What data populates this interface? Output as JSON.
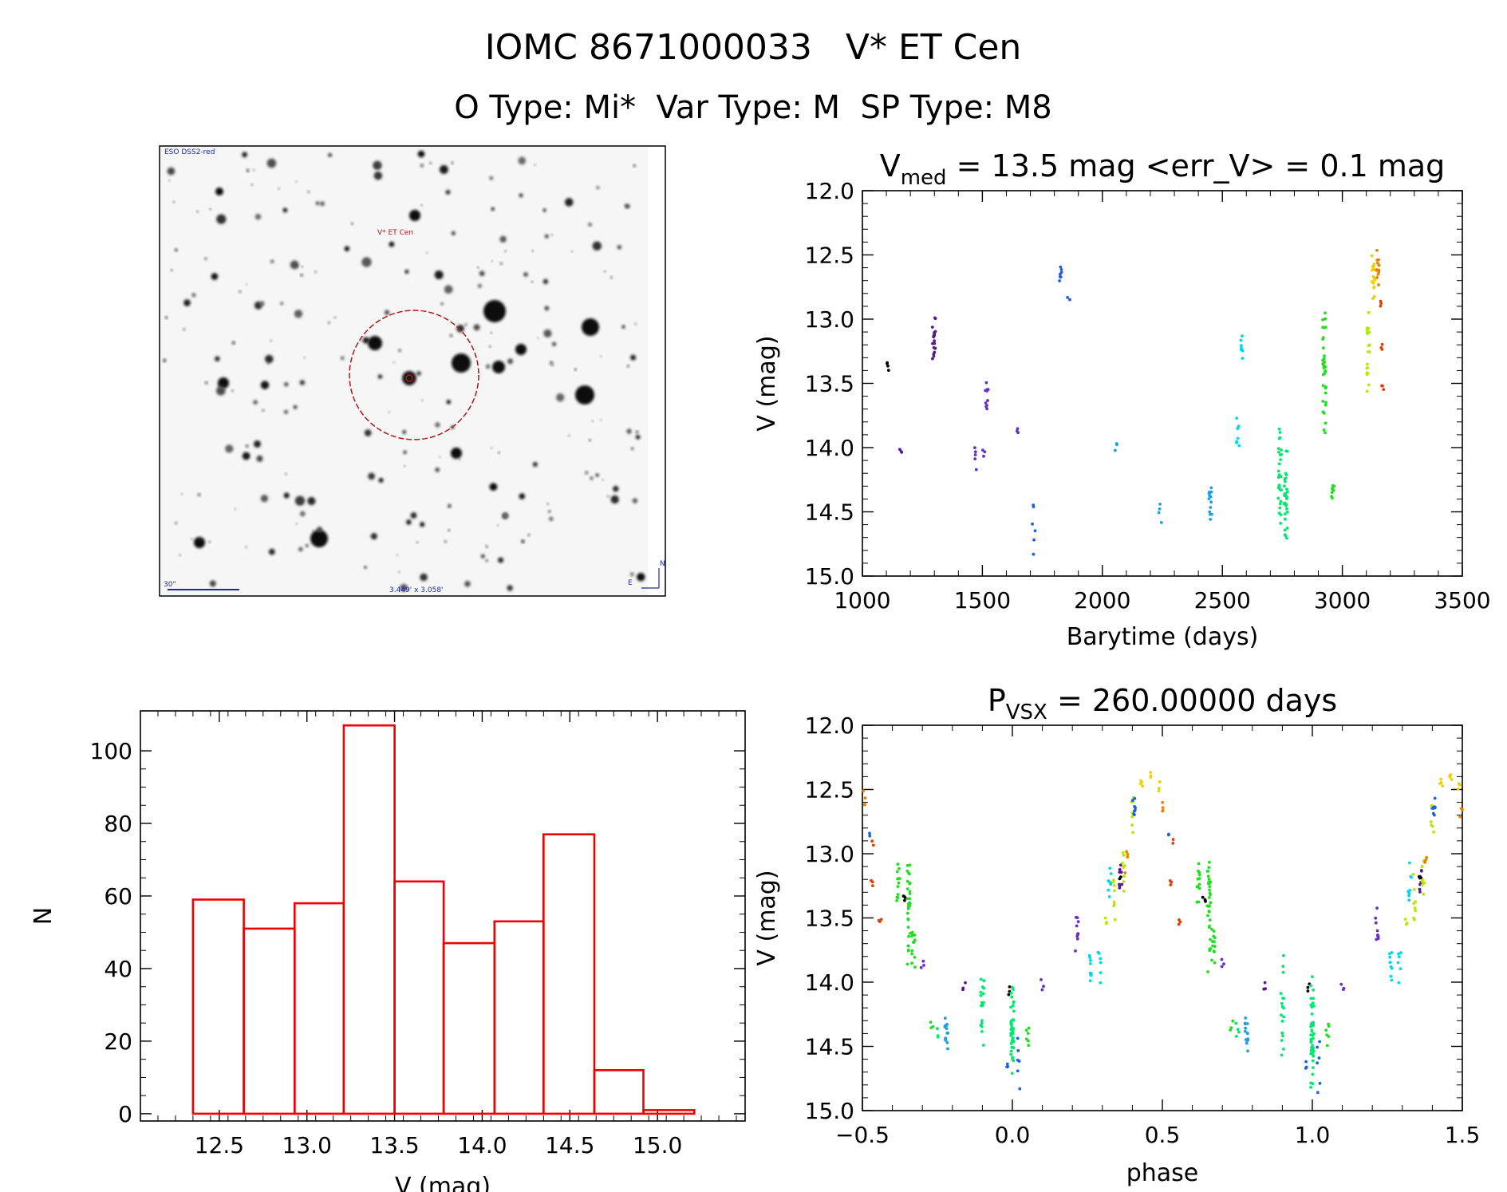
{
  "title": "IOMC 8671000033   V* ET Cen",
  "subtitle": "O Type: Mi*  Var Type: M  SP Type: M8",
  "colors": {
    "hist": "#ee0000",
    "palette": [
      "#000000",
      "#551a8b",
      "#6a2ec8",
      "#1f5fe0",
      "#1aa0e8",
      "#00d8e8",
      "#00e870",
      "#20e020",
      "#b8e800",
      "#f0d000",
      "#f08000",
      "#e04000"
    ]
  },
  "sky_image": {
    "survey": "ESO DSS2-red",
    "target_label": "V* ET Cen",
    "scale_label": "30\"",
    "fov_label": "3.449' x 3.058'",
    "north": "N",
    "east": "E"
  },
  "chart_data": [
    {
      "id": "lightcurve",
      "type": "scatter",
      "title_prefix": "V",
      "title_subscript": "med",
      "title_rest": " = 13.5 mag <err_V> = 0.1 mag",
      "xlabel": "Barytime (days)",
      "ylabel": "V (mag)",
      "xlim": [
        1000,
        3500
      ],
      "ylim": [
        15.0,
        12.0
      ],
      "xticks": [
        1000,
        1500,
        2000,
        2500,
        3000,
        3500
      ],
      "yticks": [
        12.0,
        12.5,
        13.0,
        13.5,
        14.0,
        14.5,
        15.0
      ],
      "groups": [
        {
          "color": 0,
          "x": 1105,
          "ymin": 13.3,
          "ymax": 13.4,
          "n": 4
        },
        {
          "color": 1,
          "x": 1160,
          "ymin": 14.0,
          "ymax": 14.07,
          "n": 3
        },
        {
          "color": 1,
          "x": 1298,
          "ymin": 12.95,
          "ymax": 13.38,
          "n": 18
        },
        {
          "color": 2,
          "x": 1470,
          "ymin": 13.98,
          "ymax": 14.18,
          "n": 5
        },
        {
          "color": 2,
          "x": 1505,
          "ymin": 14.0,
          "ymax": 14.08,
          "n": 3
        },
        {
          "color": 2,
          "x": 1518,
          "ymin": 13.38,
          "ymax": 13.82,
          "n": 10
        },
        {
          "color": 2,
          "x": 1645,
          "ymin": 13.82,
          "ymax": 13.9,
          "n": 3
        },
        {
          "color": 3,
          "x": 1715,
          "ymin": 14.38,
          "ymax": 14.9,
          "n": 6
        },
        {
          "color": 3,
          "x": 1825,
          "ymin": 12.56,
          "ymax": 12.73,
          "n": 8
        },
        {
          "color": 3,
          "x": 1860,
          "ymin": 12.83,
          "ymax": 12.86,
          "n": 2
        },
        {
          "color": 4,
          "x": 2055,
          "ymin": 13.95,
          "ymax": 14.05,
          "n": 3
        },
        {
          "color": 4,
          "x": 2240,
          "ymin": 14.44,
          "ymax": 14.62,
          "n": 4
        },
        {
          "color": 4,
          "x": 2450,
          "ymin": 14.22,
          "ymax": 14.58,
          "n": 14
        },
        {
          "color": 5,
          "x": 2565,
          "ymin": 13.72,
          "ymax": 14.06,
          "n": 9
        },
        {
          "color": 5,
          "x": 2580,
          "ymin": 13.06,
          "ymax": 13.38,
          "n": 8
        },
        {
          "color": 6,
          "x": 2740,
          "ymin": 13.72,
          "ymax": 14.72,
          "n": 30
        },
        {
          "color": 6,
          "x": 2765,
          "ymin": 13.95,
          "ymax": 14.82,
          "n": 30
        },
        {
          "color": 7,
          "x": 2925,
          "ymin": 12.92,
          "ymax": 13.9,
          "n": 35
        },
        {
          "color": 7,
          "x": 2960,
          "ymin": 14.25,
          "ymax": 14.42,
          "n": 8
        },
        {
          "color": 8,
          "x": 3108,
          "ymin": 12.9,
          "ymax": 13.58,
          "n": 20
        },
        {
          "color": 9,
          "x": 3130,
          "ymin": 12.36,
          "ymax": 12.9,
          "n": 18
        },
        {
          "color": 10,
          "x": 3148,
          "ymin": 12.38,
          "ymax": 12.78,
          "n": 12
        },
        {
          "color": 11,
          "x": 3162,
          "ymin": 12.86,
          "ymax": 12.92,
          "n": 3
        },
        {
          "color": 11,
          "x": 3162,
          "ymin": 13.15,
          "ymax": 13.28,
          "n": 3
        },
        {
          "color": 11,
          "x": 3170,
          "ymin": 13.48,
          "ymax": 13.56,
          "n": 3
        }
      ]
    },
    {
      "id": "histogram",
      "type": "bar",
      "xlabel": "V (mag)",
      "ylabel": "N",
      "xlim": [
        12.05,
        15.5
      ],
      "ylim": [
        -2,
        111
      ],
      "xticks": [
        12.5,
        13.0,
        13.5,
        14.0,
        14.5,
        15.0
      ],
      "yticks": [
        0,
        20,
        40,
        60,
        80,
        100
      ],
      "bin_edges": [
        12.35,
        12.64,
        12.93,
        13.21,
        13.5,
        13.78,
        14.07,
        14.35,
        14.64,
        14.92,
        15.21
      ],
      "counts": [
        59,
        51,
        58,
        107,
        64,
        47,
        53,
        77,
        12,
        1
      ]
    },
    {
      "id": "phased",
      "type": "scatter",
      "title_prefix": "P",
      "title_subscript": "VSX",
      "title_rest": " = 260.00000 days",
      "xlabel": "phase",
      "ylabel": "V (mag)",
      "xlim": [
        -0.5,
        1.5
      ],
      "ylim": [
        15.0,
        12.0
      ],
      "xticks": [
        -0.5,
        0.0,
        0.5,
        1.0,
        1.5
      ],
      "xtick_labels": [
        "−0.5",
        "0.0",
        "0.5",
        "1.0",
        "1.5"
      ],
      "yticks": [
        12.0,
        12.5,
        13.0,
        13.5,
        14.0,
        14.5,
        15.0
      ],
      "groups": [
        {
          "color": 10,
          "x": -0.495,
          "ymin": 12.45,
          "ymax": 12.65,
          "n": 4
        },
        {
          "color": 3,
          "x": -0.475,
          "ymin": 12.83,
          "ymax": 12.87,
          "n": 2
        },
        {
          "color": 11,
          "x": -0.465,
          "ymin": 12.88,
          "ymax": 12.95,
          "n": 2
        },
        {
          "color": 11,
          "x": -0.47,
          "ymin": 13.18,
          "ymax": 13.28,
          "n": 3
        },
        {
          "color": 11,
          "x": -0.44,
          "ymin": 13.48,
          "ymax": 13.56,
          "n": 3
        },
        {
          "color": 7,
          "x": -0.38,
          "ymin": 13.05,
          "ymax": 13.4,
          "n": 12
        },
        {
          "color": 0,
          "x": -0.36,
          "ymin": 13.3,
          "ymax": 13.4,
          "n": 4
        },
        {
          "color": 7,
          "x": -0.345,
          "ymin": 12.92,
          "ymax": 13.95,
          "n": 30
        },
        {
          "color": 7,
          "x": -0.33,
          "ymin": 13.5,
          "ymax": 13.92,
          "n": 12
        },
        {
          "color": 2,
          "x": -0.3,
          "ymin": 13.82,
          "ymax": 13.9,
          "n": 3
        },
        {
          "color": 7,
          "x": -0.27,
          "ymin": 14.3,
          "ymax": 14.38,
          "n": 3
        },
        {
          "color": 6,
          "x": -0.25,
          "ymin": 14.32,
          "ymax": 14.45,
          "n": 4
        },
        {
          "color": 4,
          "x": -0.22,
          "ymin": 14.22,
          "ymax": 14.58,
          "n": 14
        },
        {
          "color": 1,
          "x": -0.16,
          "ymin": 14.0,
          "ymax": 14.07,
          "n": 3
        },
        {
          "color": 6,
          "x": -0.1,
          "ymin": 13.75,
          "ymax": 14.7,
          "n": 18
        },
        {
          "color": 3,
          "x": -0.02,
          "ymin": 14.6,
          "ymax": 14.7,
          "n": 3
        },
        {
          "color": 0,
          "x": -0.01,
          "ymin": 14.0,
          "ymax": 14.1,
          "n": 3
        },
        {
          "color": 6,
          "x": 0.0,
          "ymin": 13.9,
          "ymax": 14.85,
          "n": 45
        },
        {
          "color": 3,
          "x": 0.02,
          "ymin": 14.38,
          "ymax": 14.9,
          "n": 6
        },
        {
          "color": 7,
          "x": 0.05,
          "ymin": 14.3,
          "ymax": 14.5,
          "n": 6
        },
        {
          "color": 2,
          "x": 0.1,
          "ymin": 13.98,
          "ymax": 14.08,
          "n": 3
        },
        {
          "color": 2,
          "x": 0.215,
          "ymin": 13.38,
          "ymax": 13.82,
          "n": 10
        },
        {
          "color": 5,
          "x": 0.26,
          "ymin": 13.72,
          "ymax": 14.06,
          "n": 9
        },
        {
          "color": 5,
          "x": 0.29,
          "ymin": 13.65,
          "ymax": 14.02,
          "n": 6
        },
        {
          "color": 8,
          "x": 0.31,
          "ymin": 13.5,
          "ymax": 13.58,
          "n": 3
        },
        {
          "color": 5,
          "x": 0.325,
          "ymin": 13.06,
          "ymax": 13.38,
          "n": 8
        },
        {
          "color": 8,
          "x": 0.34,
          "ymin": 13.1,
          "ymax": 13.55,
          "n": 8
        },
        {
          "color": 1,
          "x": 0.36,
          "ymin": 13.08,
          "ymax": 13.3,
          "n": 8
        },
        {
          "color": 0,
          "x": 0.36,
          "ymin": 13.15,
          "ymax": 13.22,
          "n": 2
        },
        {
          "color": 8,
          "x": 0.37,
          "ymin": 12.95,
          "ymax": 13.35,
          "n": 8
        },
        {
          "color": 10,
          "x": 0.38,
          "ymin": 12.95,
          "ymax": 13.15,
          "n": 4
        },
        {
          "color": 8,
          "x": 0.4,
          "ymin": 12.55,
          "ymax": 12.85,
          "n": 8
        },
        {
          "color": 3,
          "x": 0.405,
          "ymin": 12.56,
          "ymax": 12.73,
          "n": 8
        },
        {
          "color": 9,
          "x": 0.43,
          "ymin": 12.4,
          "ymax": 12.48,
          "n": 4
        },
        {
          "color": 9,
          "x": 0.46,
          "ymin": 12.36,
          "ymax": 12.44,
          "n": 4
        },
        {
          "color": 9,
          "x": 0.49,
          "ymin": 12.44,
          "ymax": 12.52,
          "n": 3
        },
        {
          "color": 10,
          "x": 0.505,
          "ymin": 12.58,
          "ymax": 12.72,
          "n": 4
        },
        {
          "color": 3,
          "x": 0.525,
          "ymin": 12.83,
          "ymax": 12.87,
          "n": 2
        },
        {
          "color": 11,
          "x": 0.535,
          "ymin": 12.88,
          "ymax": 12.95,
          "n": 2
        },
        {
          "color": 11,
          "x": 0.53,
          "ymin": 13.18,
          "ymax": 13.28,
          "n": 3
        },
        {
          "color": 11,
          "x": 0.56,
          "ymin": 13.48,
          "ymax": 13.56,
          "n": 3
        },
        {
          "color": 7,
          "x": 0.62,
          "ymin": 13.05,
          "ymax": 13.4,
          "n": 12
        },
        {
          "color": 0,
          "x": 0.64,
          "ymin": 13.3,
          "ymax": 13.4,
          "n": 4
        },
        {
          "color": 7,
          "x": 0.655,
          "ymin": 12.92,
          "ymax": 13.95,
          "n": 30
        },
        {
          "color": 7,
          "x": 0.67,
          "ymin": 13.5,
          "ymax": 13.92,
          "n": 12
        },
        {
          "color": 2,
          "x": 0.7,
          "ymin": 13.82,
          "ymax": 13.9,
          "n": 3
        },
        {
          "color": 7,
          "x": 0.73,
          "ymin": 14.3,
          "ymax": 14.38,
          "n": 3
        },
        {
          "color": 6,
          "x": 0.75,
          "ymin": 14.32,
          "ymax": 14.45,
          "n": 4
        },
        {
          "color": 4,
          "x": 0.78,
          "ymin": 14.22,
          "ymax": 14.58,
          "n": 14
        },
        {
          "color": 1,
          "x": 0.84,
          "ymin": 14.0,
          "ymax": 14.07,
          "n": 3
        },
        {
          "color": 6,
          "x": 0.9,
          "ymin": 13.75,
          "ymax": 14.7,
          "n": 18
        },
        {
          "color": 3,
          "x": 0.98,
          "ymin": 14.6,
          "ymax": 14.7,
          "n": 3
        },
        {
          "color": 0,
          "x": 0.99,
          "ymin": 14.0,
          "ymax": 14.1,
          "n": 3
        },
        {
          "color": 6,
          "x": 1.0,
          "ymin": 13.9,
          "ymax": 14.85,
          "n": 45
        },
        {
          "color": 3,
          "x": 1.02,
          "ymin": 14.38,
          "ymax": 14.9,
          "n": 6
        },
        {
          "color": 7,
          "x": 1.05,
          "ymin": 14.3,
          "ymax": 14.5,
          "n": 6
        },
        {
          "color": 2,
          "x": 1.1,
          "ymin": 13.98,
          "ymax": 14.08,
          "n": 3
        },
        {
          "color": 2,
          "x": 1.215,
          "ymin": 13.38,
          "ymax": 13.82,
          "n": 10
        },
        {
          "color": 5,
          "x": 1.26,
          "ymin": 13.72,
          "ymax": 14.06,
          "n": 9
        },
        {
          "color": 5,
          "x": 1.29,
          "ymin": 13.65,
          "ymax": 14.02,
          "n": 6
        },
        {
          "color": 8,
          "x": 1.31,
          "ymin": 13.5,
          "ymax": 13.58,
          "n": 3
        },
        {
          "color": 5,
          "x": 1.325,
          "ymin": 13.06,
          "ymax": 13.38,
          "n": 8
        },
        {
          "color": 8,
          "x": 1.34,
          "ymin": 13.1,
          "ymax": 13.55,
          "n": 8
        },
        {
          "color": 1,
          "x": 1.36,
          "ymin": 13.08,
          "ymax": 13.3,
          "n": 8
        },
        {
          "color": 0,
          "x": 1.36,
          "ymin": 13.15,
          "ymax": 13.22,
          "n": 2
        },
        {
          "color": 8,
          "x": 1.37,
          "ymin": 12.95,
          "ymax": 13.35,
          "n": 8
        },
        {
          "color": 10,
          "x": 1.38,
          "ymin": 12.95,
          "ymax": 13.15,
          "n": 4
        },
        {
          "color": 8,
          "x": 1.4,
          "ymin": 12.55,
          "ymax": 12.85,
          "n": 8
        },
        {
          "color": 3,
          "x": 1.405,
          "ymin": 12.56,
          "ymax": 12.73,
          "n": 8
        },
        {
          "color": 9,
          "x": 1.43,
          "ymin": 12.4,
          "ymax": 12.48,
          "n": 4
        },
        {
          "color": 9,
          "x": 1.46,
          "ymin": 12.36,
          "ymax": 12.44,
          "n": 4
        },
        {
          "color": 9,
          "x": 1.49,
          "ymin": 12.44,
          "ymax": 12.52,
          "n": 3
        },
        {
          "color": 10,
          "x": 1.495,
          "ymin": 12.6,
          "ymax": 12.72,
          "n": 3
        }
      ]
    }
  ]
}
